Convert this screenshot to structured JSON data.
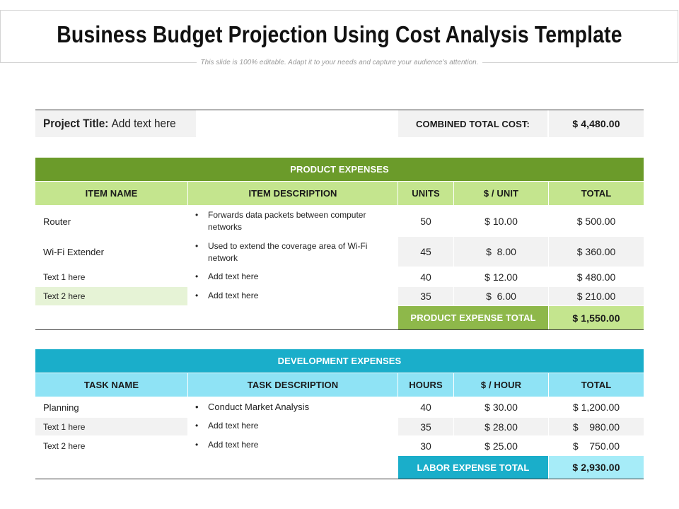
{
  "header": {
    "title": "Business Budget Projection Using Cost Analysis Template",
    "subtitle": "This slide is 100% editable. Adapt it to your needs and capture your audience's attention."
  },
  "summary": {
    "project_label": "Project Title:",
    "project_value": "Add text here",
    "combined_label": "COMBINED TOTAL COST:",
    "combined_value": "$ 4,480.00"
  },
  "product": {
    "section_title": "PRODUCT EXPENSES",
    "columns": [
      "ITEM NAME",
      "ITEM DESCRIPTION",
      "UNITS",
      "$ / UNIT",
      "TOTAL"
    ],
    "rows": [
      {
        "name": "Router",
        "desc": "Forwards data packets between computer networks",
        "units": "50",
        "price": "$ 10.00",
        "total": "$ 500.00"
      },
      {
        "name": "Wi-Fi Extender",
        "desc": "Used to extend the coverage area of Wi-Fi network",
        "units": "45",
        "price": "$  8.00",
        "total": "$ 360.00"
      },
      {
        "name": "Text 1 here",
        "desc": "Add text here",
        "units": "40",
        "price": "$ 12.00",
        "total": "$ 480.00"
      },
      {
        "name": "Text 2 here",
        "desc": "Add text here",
        "units": "35",
        "price": "$  6.00",
        "total": "$ 210.00"
      }
    ],
    "total_label": "PRODUCT EXPENSE TOTAL",
    "total_value": "$ 1,550.00"
  },
  "development": {
    "section_title": "DEVELOPMENT EXPENSES",
    "columns": [
      "TASK NAME",
      "TASK DESCRIPTION",
      "HOURS",
      "$ / HOUR",
      "TOTAL"
    ],
    "rows": [
      {
        "name": "Planning",
        "desc": "Conduct Market Analysis",
        "units": "40",
        "price": "$ 30.00",
        "total": "$ 1,200.00"
      },
      {
        "name": "Text 1 here",
        "desc": "Add text here",
        "units": "35",
        "price": "$ 28.00",
        "total": "$    980.00"
      },
      {
        "name": "Text 2 here",
        "desc": "Add text here",
        "units": "30",
        "price": "$ 25.00",
        "total": "$    750.00"
      }
    ],
    "total_label": "LABOR EXPENSE TOTAL",
    "total_value": "$ 2,930.00"
  }
}
